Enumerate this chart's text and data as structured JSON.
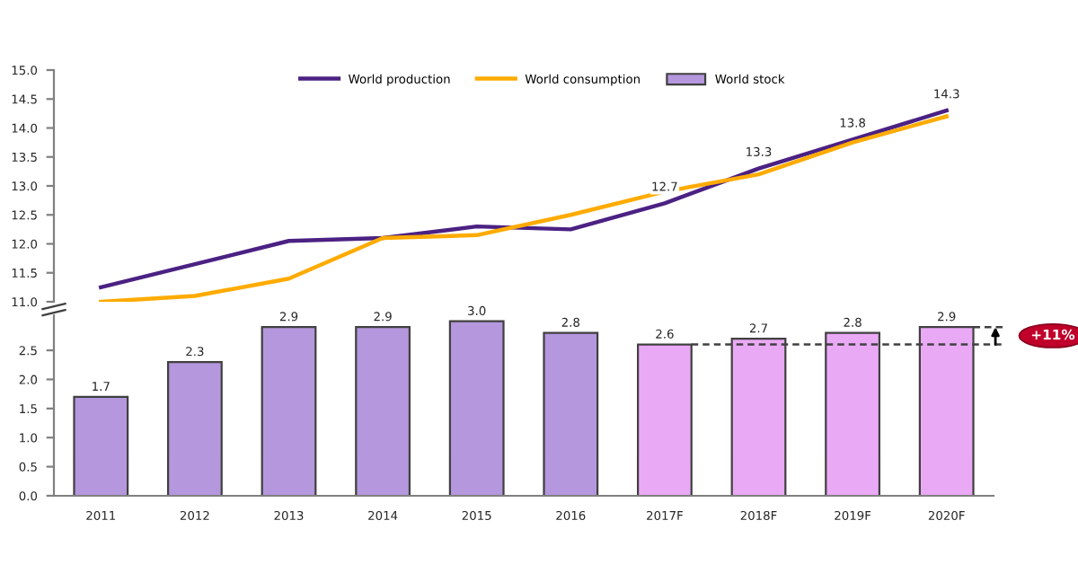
{
  "chart_data": [
    {
      "type": "line",
      "categories": [
        null,
        null,
        null,
        null,
        null,
        null,
        null,
        null,
        null,
        null
      ],
      "series": [
        {
          "name": "World production",
          "color": "#4b2183",
          "values": [
            11.25,
            11.65,
            12.05,
            12.1,
            12.3,
            12.25,
            12.7,
            13.3,
            13.8,
            14.3
          ],
          "value_labels": [
            null,
            null,
            null,
            null,
            null,
            null,
            "12.7",
            "13.3",
            "13.8",
            "14.3"
          ]
        },
        {
          "name": "World consumption",
          "color": "#ffab00",
          "values": [
            11.0,
            11.1,
            11.4,
            12.1,
            12.15,
            12.5,
            12.9,
            13.2,
            13.75,
            14.2
          ]
        }
      ],
      "ylim": [
        11,
        15
      ],
      "yticks": [
        {
          "value": 11,
          "label": "11.0"
        },
        11.5,
        {
          "value": 12,
          "label": "12.0"
        },
        12.5,
        {
          "value": 13,
          "label": "13.0"
        },
        13.5,
        {
          "value": 14,
          "label": "14.0"
        },
        14.5,
        {
          "value": 15,
          "label": "15.0"
        }
      ],
      "tick_labels": "y",
      "legend": "top",
      "marker": "none",
      "line_style": "solid"
    },
    {
      "type": "bar",
      "categories": [
        "2011",
        "2012",
        "2013",
        "2014",
        "2015",
        "2016",
        "2017F",
        "2018F",
        "2019F",
        "2020F"
      ],
      "series": [
        {
          "name": "World stock",
          "color": "#b497dd",
          "colors": [
            "#b497dd",
            "#b497dd",
            "#b497dd",
            "#b497dd",
            "#b497dd",
            "#b497dd",
            "#eaa9f5",
            "#eaa9f5",
            "#eaa9f5",
            "#eaa9f5"
          ],
          "values": [
            1.7,
            2.3,
            2.9,
            2.9,
            3.0,
            2.8,
            2.6,
            2.7,
            2.8,
            2.9
          ],
          "value_labels": [
            "1.7",
            "2.3",
            "2.9",
            "2.9",
            "3.0",
            "2.8",
            "2.6",
            "2.7",
            "2.8",
            "2.9"
          ]
        }
      ],
      "ylim": [
        0,
        3.1
      ],
      "yticks": [
        {
          "value": 0,
          "label": "0.0"
        },
        0.5,
        {
          "value": 1,
          "label": "1.0"
        },
        1.5,
        {
          "value": 2,
          "label": "2.0"
        },
        2.5
      ],
      "ref_lines": [
        {
          "axis": "y",
          "value": 2.6,
          "color": "#404040",
          "line_style": "dashed"
        }
      ],
      "annotations": [
        "+11%"
      ]
    }
  ]
}
